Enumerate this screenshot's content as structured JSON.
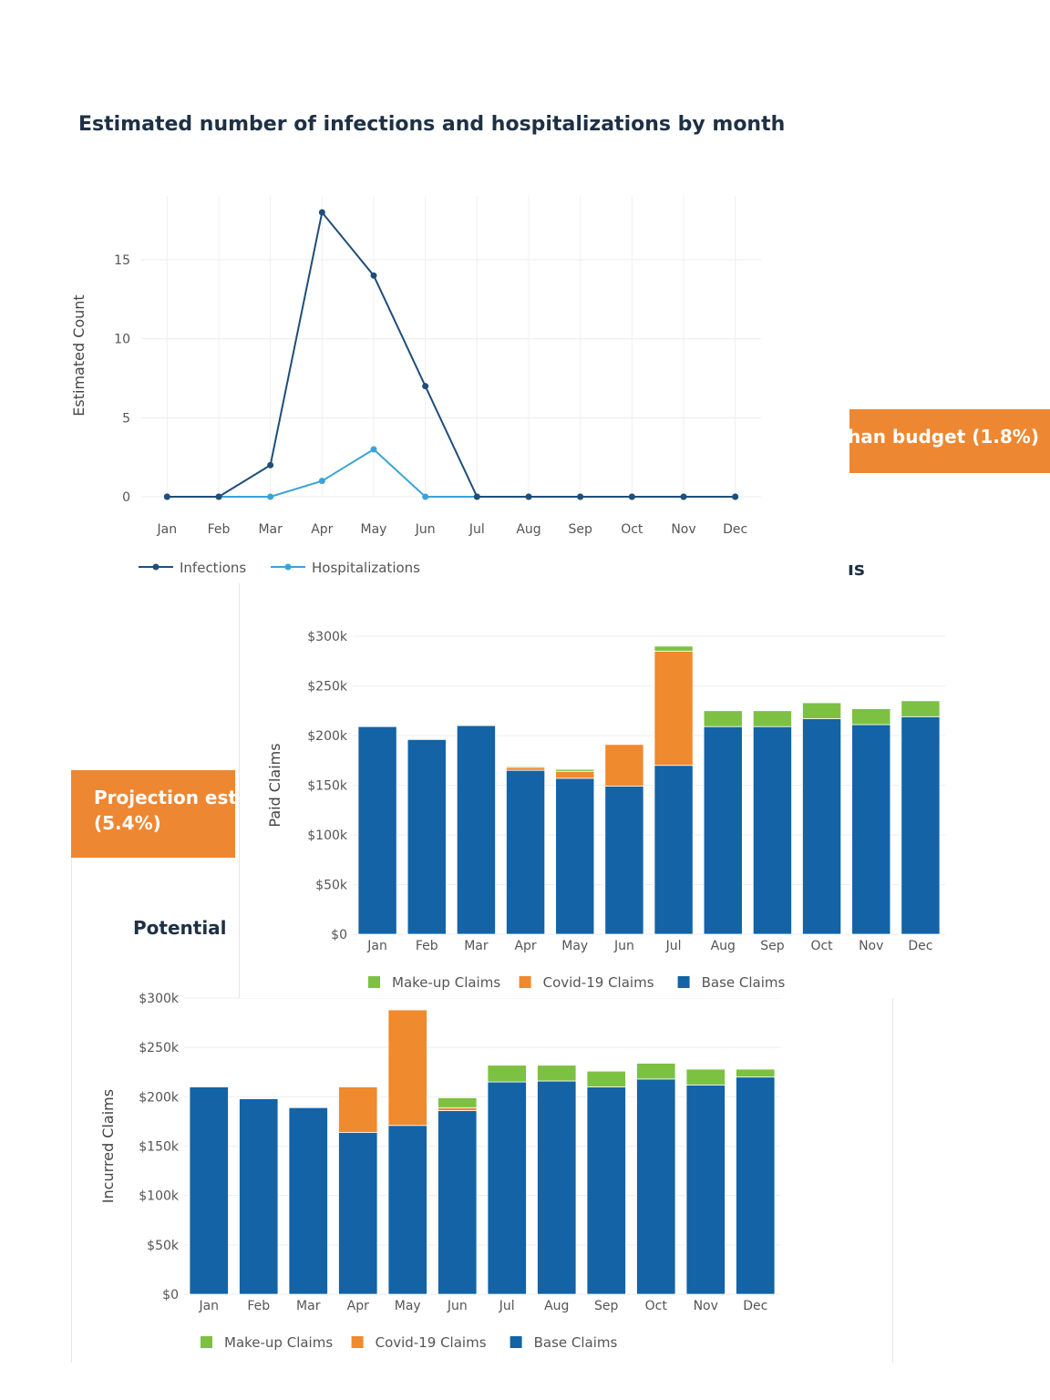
{
  "banners": {
    "right": "han budget (1.8%)",
    "left_line1": "Projection esti",
    "left_line2": "(5.4%)"
  },
  "headings": {
    "right_fragment": "ıs",
    "left_fragment": "Potential"
  },
  "colors": {
    "infections": "#1f4e79",
    "hospitalizations": "#3ba3d8",
    "base": "#1363a6",
    "covid": "#ef8a2e",
    "makeup": "#7dc142",
    "banner": "#ee8732"
  },
  "chart_data": [
    {
      "type": "line",
      "title": "Estimated number of infections and hospitalizations by month",
      "xlabel": "",
      "ylabel": "Estimated Count",
      "x": [
        "Jan",
        "Feb",
        "Mar",
        "Apr",
        "May",
        "Jun",
        "Jul",
        "Aug",
        "Sep",
        "Oct",
        "Nov",
        "Dec"
      ],
      "ylim": [
        0,
        18
      ],
      "yticks": [
        0,
        5,
        10,
        15
      ],
      "grid": true,
      "legend_position": "bottom-left",
      "series": [
        {
          "name": "Infections",
          "values": [
            0,
            0,
            2,
            18,
            14,
            7,
            0,
            0,
            0,
            0,
            0,
            0
          ]
        },
        {
          "name": "Hospitalizations",
          "values": [
            0,
            0,
            0,
            1,
            3,
            0,
            0,
            0,
            0,
            0,
            0,
            0
          ]
        }
      ]
    },
    {
      "type": "bar",
      "stacked": true,
      "title": "",
      "xlabel": "",
      "ylabel": "Paid Claims",
      "categories": [
        "Jan",
        "Feb",
        "Mar",
        "Apr",
        "May",
        "Jun",
        "Jul",
        "Aug",
        "Sep",
        "Oct",
        "Nov",
        "Dec"
      ],
      "ylim": [
        0,
        300000
      ],
      "yticks": [
        "$0",
        "$50k",
        "$100k",
        "$150k",
        "$200k",
        "$250k",
        "$300k"
      ],
      "legend_position": "bottom",
      "series": [
        {
          "name": "Base Claims",
          "values": [
            209000,
            196000,
            210000,
            165000,
            157000,
            149000,
            170000,
            209000,
            209000,
            217000,
            211000,
            219000
          ]
        },
        {
          "name": "Covid-19 Claims",
          "values": [
            0,
            0,
            0,
            3000,
            7000,
            42000,
            115000,
            0,
            0,
            0,
            0,
            0
          ]
        },
        {
          "name": "Make-up Claims",
          "values": [
            0,
            0,
            0,
            1000,
            2000,
            0,
            5000,
            16000,
            16000,
            16000,
            16000,
            16000
          ]
        }
      ]
    },
    {
      "type": "bar",
      "stacked": true,
      "title": "",
      "xlabel": "",
      "ylabel": "Incurred Claims",
      "categories": [
        "Jan",
        "Feb",
        "Mar",
        "Apr",
        "May",
        "Jun",
        "Jul",
        "Aug",
        "Sep",
        "Oct",
        "Nov",
        "Dec"
      ],
      "ylim": [
        0,
        300000
      ],
      "yticks": [
        "$0",
        "$50k",
        "$100k",
        "$150k",
        "$200k",
        "$250k",
        "$300k"
      ],
      "legend_position": "bottom",
      "series": [
        {
          "name": "Base Claims",
          "values": [
            210000,
            198000,
            189000,
            164000,
            171000,
            186000,
            215000,
            216000,
            210000,
            218000,
            212000,
            220000
          ]
        },
        {
          "name": "Covid-19 Claims",
          "values": [
            0,
            0,
            0,
            46000,
            117000,
            3000,
            0,
            0,
            0,
            0,
            0,
            0
          ]
        },
        {
          "name": "Make-up Claims",
          "values": [
            0,
            0,
            0,
            0,
            0,
            10000,
            17000,
            16000,
            16000,
            16000,
            16000,
            8000
          ]
        }
      ]
    }
  ]
}
